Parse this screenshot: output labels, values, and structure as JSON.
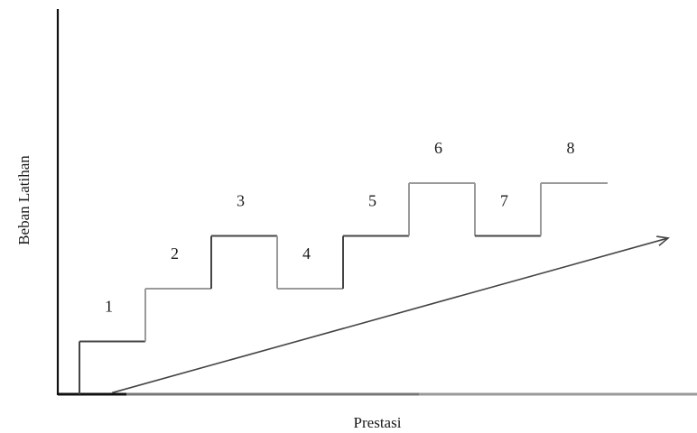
{
  "chart_data": {
    "type": "line",
    "title": "",
    "xlabel": "Prestasi",
    "ylabel": "Beban Latihan",
    "grid": false,
    "legend": "none",
    "steps": [
      {
        "label": "1",
        "level": 1
      },
      {
        "label": "2",
        "level": 2
      },
      {
        "label": "3",
        "level": 3
      },
      {
        "label": "4",
        "level": 2
      },
      {
        "label": "5",
        "level": 3
      },
      {
        "label": "6",
        "level": 4
      },
      {
        "label": "7",
        "level": 3
      },
      {
        "label": "8",
        "level": 4
      }
    ],
    "trend_arrow": {
      "from_level": 0.3,
      "to_level": 3.3
    },
    "colors": {
      "axis": "#111111",
      "line_dark": "#444444",
      "line_light": "#9a9a9a",
      "axis_base_light": "#777777"
    }
  }
}
